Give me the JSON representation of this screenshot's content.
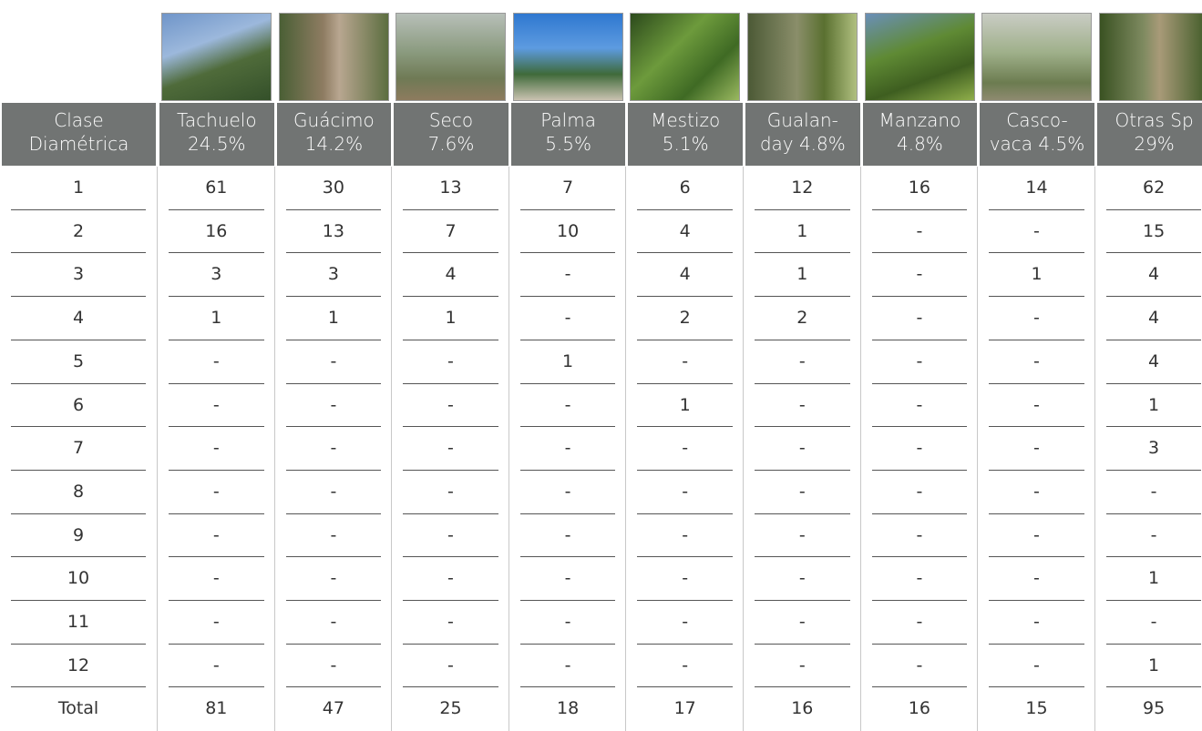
{
  "table": {
    "columns": [
      [
        "Clase",
        "Diamétrica"
      ],
      [
        "Tachuelo",
        "24.5%"
      ],
      [
        "Guácimo",
        "14.2%"
      ],
      [
        "Seco",
        "7.6%"
      ],
      [
        "Palma",
        "5.5%"
      ],
      [
        "Mestizo",
        "5.1%"
      ],
      [
        "Gualan-",
        "day 4.8%"
      ],
      [
        "Manzano",
        "4.8%"
      ],
      [
        "Casco-",
        "vaca 4.5%"
      ],
      [
        "Otras Sp",
        "29%"
      ]
    ],
    "rows": [
      [
        1,
        61,
        30,
        13,
        7,
        6,
        12,
        16,
        14,
        62
      ],
      [
        2,
        16,
        13,
        7,
        10,
        4,
        1,
        "-",
        "-",
        15
      ],
      [
        3,
        3,
        3,
        4,
        "-",
        4,
        1,
        "-",
        1,
        4
      ],
      [
        4,
        1,
        1,
        1,
        "-",
        2,
        2,
        "-",
        "-",
        4
      ],
      [
        5,
        "-",
        "-",
        "-",
        1,
        "-",
        "-",
        "-",
        "-",
        4
      ],
      [
        6,
        "-",
        "-",
        "-",
        "-",
        1,
        "-",
        "-",
        "-",
        1
      ],
      [
        7,
        "-",
        "-",
        "-",
        "-",
        "-",
        "-",
        "-",
        "-",
        3
      ],
      [
        8,
        "-",
        "-",
        "-",
        "-",
        "-",
        "-",
        "-",
        "-",
        "-"
      ],
      [
        9,
        "-",
        "-",
        "-",
        "-",
        "-",
        "-",
        "-",
        "-",
        "-"
      ],
      [
        10,
        "-",
        "-",
        "-",
        "-",
        "-",
        "-",
        "-",
        "-",
        1
      ],
      [
        11,
        "-",
        "-",
        "-",
        "-",
        "-",
        "-",
        "-",
        "-",
        "-"
      ],
      [
        12,
        "-",
        "-",
        "-",
        "-",
        "-",
        "-",
        "-",
        "-",
        1
      ],
      [
        "Total",
        81,
        47,
        25,
        18,
        17,
        16,
        16,
        15,
        95
      ]
    ]
  }
}
